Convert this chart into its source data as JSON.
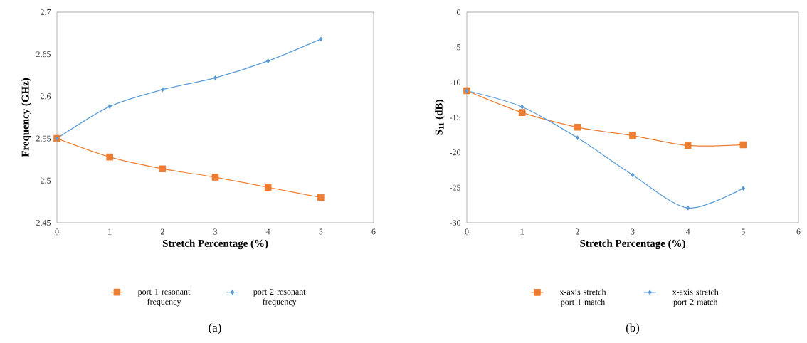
{
  "chart_data": [
    {
      "type": "line",
      "xlabel": "Stretch Percentage (%)",
      "ylabel": "Frequency (GHz)",
      "x": [
        0,
        1,
        2,
        3,
        4,
        5
      ],
      "xlim": [
        0,
        6
      ],
      "xticks": [
        0,
        1,
        2,
        3,
        4,
        5,
        6
      ],
      "ylim": [
        2.45,
        2.7
      ],
      "yticks": [
        2.45,
        2.5,
        2.55,
        2.6,
        2.65,
        2.7
      ],
      "grid": false,
      "legend": "bottom",
      "line_style": "solid",
      "series": [
        {
          "name": "port 1 resonant frequency",
          "color": "#ed7d31",
          "marker": "square",
          "values": [
            2.55,
            2.528,
            2.514,
            2.504,
            2.492,
            2.48
          ]
        },
        {
          "name": "port 2 resonant frequency",
          "color": "#5b9bd5",
          "marker": "diamond",
          "values": [
            2.55,
            2.588,
            2.608,
            2.622,
            2.642,
            2.668
          ]
        }
      ],
      "annotations": [
        "(a)"
      ]
    },
    {
      "type": "line",
      "xlabel": "Stretch Percentage (%)",
      "ylabel": "S$_{11}$ (dB)",
      "x": [
        0,
        1,
        2,
        3,
        4,
        5
      ],
      "xlim": [
        0,
        6
      ],
      "xticks": [
        0,
        1,
        2,
        3,
        4,
        5,
        6
      ],
      "ylim": [
        -30,
        0
      ],
      "yticks": [
        -30,
        -25,
        -20,
        -15,
        -10,
        -5,
        0
      ],
      "grid": false,
      "legend": "bottom",
      "line_style": "solid",
      "series": [
        {
          "name": "x-axis stretch port 1 match",
          "color": "#ed7d31",
          "marker": "square",
          "values": [
            -11.2,
            -14.3,
            -16.4,
            -17.6,
            -19.0,
            -18.9
          ]
        },
        {
          "name": "x-axis stretch port 2 match",
          "color": "#5b9bd5",
          "marker": "diamond",
          "values": [
            -11.2,
            -13.5,
            -17.9,
            -23.2,
            -27.9,
            -25.1
          ]
        }
      ],
      "annotations": [
        "(b)"
      ]
    }
  ]
}
